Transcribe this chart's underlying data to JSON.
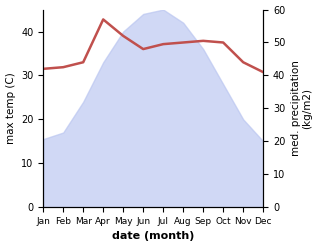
{
  "months": [
    "Jan",
    "Feb",
    "Mar",
    "Apr",
    "May",
    "Jun",
    "Jul",
    "Aug",
    "Sep",
    "Oct",
    "Nov",
    "Dec"
  ],
  "temp": [
    15.5,
    17.0,
    24.0,
    33.0,
    40.0,
    44.0,
    45.0,
    42.0,
    36.0,
    28.0,
    20.0,
    15.0
  ],
  "precip": [
    42.0,
    42.5,
    44.0,
    57.0,
    52.0,
    48.0,
    49.5,
    50.0,
    50.5,
    50.0,
    44.0,
    41.0
  ],
  "temp_ylim": [
    0,
    45
  ],
  "precip_ylim": [
    0,
    60
  ],
  "temp_yticks": [
    0,
    10,
    20,
    30,
    40
  ],
  "precip_yticks": [
    0,
    10,
    20,
    30,
    40,
    50,
    60
  ],
  "fill_color": "#b8c4f0",
  "fill_alpha": 0.65,
  "line_color": "#c0504d",
  "line_width": 1.8,
  "xlabel": "date (month)",
  "ylabel_left": "max temp (C)",
  "ylabel_right": "med. precipitation\n(kg/m2)",
  "bg_color": "#ffffff"
}
